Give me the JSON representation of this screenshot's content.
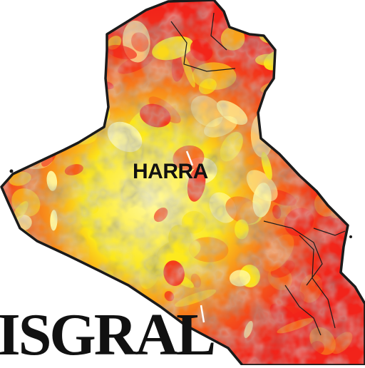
{
  "map": {
    "label": "HARRA",
    "title": "ISGRAL",
    "colors": {
      "base_red": "#f2231a",
      "hot_orange": "#f7761c",
      "yellow": "#fce81a",
      "pale_yellow": "#fff9a0",
      "border": "#1a1a1a",
      "background": "#ffffff"
    }
  }
}
